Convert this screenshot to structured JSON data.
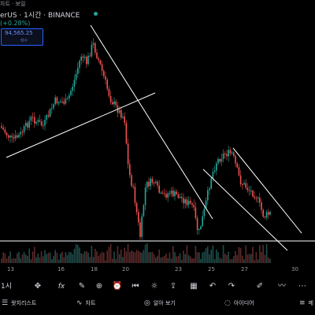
{
  "header": {
    "top_text": "차트 · 보일",
    "title": "erUS · 1시간 · BINANCE",
    "change": "(+0.28%)",
    "price_value": "94,565.25",
    "price_sub": "매수"
  },
  "chart_data": {
    "type": "candlestick",
    "x_tick_labels": [
      "13",
      "16",
      "18",
      "20",
      "23",
      "25",
      "27",
      "30"
    ],
    "trendlines": 5,
    "horizontal_line": true,
    "volume_bars": true
  },
  "toolbar": {
    "interval_label": "1시",
    "icons": [
      "crosshair-icon",
      "fx-icon",
      "add-icon",
      "alert-icon",
      "replay-icon",
      "idea-icon",
      "calendar-icon",
      "undo-icon",
      "redo-icon",
      "draw-icon",
      "more-icon"
    ]
  },
  "nav": {
    "watchlist": "왓치리스트",
    "chart": "차트",
    "explore": "알아 보기",
    "ideas": "아이디어",
    "menu": "메"
  }
}
